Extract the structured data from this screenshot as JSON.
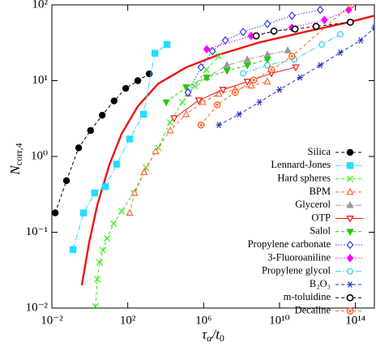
{
  "chart_data": {
    "type": "scatter",
    "log_x": true,
    "log_y": true,
    "x_label": {
      "base": "τ",
      "sub": "α",
      "mid": "/t",
      "sub2": "0"
    },
    "y_label": {
      "base": "N",
      "sub": "corr,4"
    },
    "xlim": [
      0.01,
      1000000000000000.0
    ],
    "ylim": [
      0.01,
      100
    ],
    "xticks": [
      {
        "value": 0.01,
        "label": "10⁻²"
      },
      {
        "value": 100,
        "label": "10²"
      },
      {
        "value": 1000000,
        "label": "10⁶"
      },
      {
        "value": 10000000000,
        "label": "10¹⁰"
      },
      {
        "value": 100000000000000,
        "label": "10¹⁴"
      }
    ],
    "yticks": [
      {
        "value": 0.01,
        "label": "10⁻²"
      },
      {
        "value": 0.1,
        "label": "10⁻¹"
      },
      {
        "value": 1,
        "label": "10⁰"
      },
      {
        "value": 10,
        "label": "10¹"
      },
      {
        "value": 100,
        "label": "10²"
      }
    ],
    "legend": "right",
    "series": [
      {
        "name": "Silica",
        "color": "#000000",
        "marker": "circle",
        "dash": "dashed",
        "x": [
          0.015,
          0.059,
          0.26,
          1.1,
          4.5,
          19,
          78,
          340,
          1350
        ],
        "values": [
          0.18,
          0.48,
          1.3,
          2.2,
          3.5,
          5.4,
          7.9,
          10,
          12.3
        ]
      },
      {
        "name": "Lennard-Jones",
        "color": "#22ddff",
        "marker": "square",
        "dash": "dashdot",
        "x": [
          0.13,
          0.47,
          1.8,
          6.6,
          26,
          126,
          680,
          2700,
          11700
        ],
        "values": [
          0.059,
          0.18,
          0.33,
          0.4,
          0.79,
          1.7,
          3.6,
          23,
          30
        ]
      },
      {
        "name": "Hard spheres",
        "color": "#33ee11",
        "marker": "x",
        "dash": "dashed",
        "x": [
          2.0,
          2.5,
          3.3,
          4.9,
          8.1,
          18,
          48,
          210,
          910,
          4000,
          17000,
          76000,
          330000,
          1400000,
          6300000
        ],
        "values": [
          0.0105,
          0.024,
          0.04,
          0.058,
          0.083,
          0.13,
          0.19,
          0.33,
          0.71,
          1.3,
          2.8,
          5.2,
          8.5,
          14,
          21
        ]
      },
      {
        "name": "BPM",
        "color": "#ff6633",
        "marker": "tri-open",
        "dash": "dashed",
        "x": [
          126,
          230,
          740,
          2950,
          17400,
          120000,
          890000,
          6300000,
          46000000,
          320000000,
          2300000000
        ],
        "values": [
          0.18,
          0.33,
          0.62,
          1.17,
          2.2,
          3.6,
          5.2,
          6.7,
          7.6,
          8.6,
          9.7
        ]
      },
      {
        "name": "Glycerol",
        "color": "#999999",
        "marker": "tri",
        "dash": "dashdot",
        "x": [
          150000,
          1450000,
          17000000,
          200000000,
          2300000000,
          27000000000
        ],
        "values": [
          6.7,
          11,
          16,
          19,
          22,
          25
        ]
      },
      {
        "name": "OTP",
        "color": "#ee1111",
        "marker": "tri-down-open",
        "dash": "solid",
        "x": [
          28000,
          550000,
          10500000,
          200000000,
          3800000000,
          73000000000
        ],
        "values": [
          3.2,
          5.5,
          7.6,
          9.7,
          12.5,
          15
        ]
      },
      {
        "name": "Salol",
        "color": "#22cc00",
        "marker": "tri-down",
        "dash": "dashed",
        "x": [
          10700,
          120000,
          1450000,
          17000000,
          200000000,
          2300000000
        ],
        "values": [
          5.2,
          8.2,
          11,
          13.5,
          16,
          19
        ]
      },
      {
        "name": "Propylene carbonate",
        "color": "#3333ee",
        "marker": "diamond-open",
        "dash": "dotted",
        "x": [
          150000,
          730000,
          2900000,
          14000000,
          120000000,
          2300000000,
          45000000000,
          1400000000000
        ],
        "values": [
          7.0,
          15,
          24.5,
          34,
          44,
          56,
          72,
          86
        ]
      },
      {
        "name": "3-Fluoroaniline",
        "color": "#ff00ff",
        "marker": "diamond",
        "dash": "dotted",
        "x": [
          1450000,
          320000000,
          45000000000,
          2300000000000,
          44000000000000
        ],
        "values": [
          26,
          39,
          50,
          63,
          86
        ]
      },
      {
        "name": "Propylene glycol",
        "color": "#33ccee",
        "marker": "hexagon-open",
        "dash": "dashdot",
        "x": [
          120000000,
          2300000000,
          60000000000,
          1700000000000,
          16000000000000
        ],
        "values": [
          12.5,
          16,
          19,
          30,
          41
        ]
      },
      {
        "name": "B₂O₃",
        "color": "#2233cc",
        "marker": "star",
        "dash": "dashed",
        "x": [
          6300000,
          74000000,
          870000000,
          10000000000,
          120000000000,
          1400000000000,
          16000000000000,
          190000000000000,
          1000000000000000
        ],
        "values": [
          2.6,
          3.6,
          5.2,
          7.6,
          11,
          16,
          23.5,
          34,
          50
        ]
      },
      {
        "name": "m-toluidine",
        "color": "#000000",
        "marker": "circle-open",
        "dash": "dashed",
        "x": [
          590000000,
          5100000000,
          66000000000,
          850000000000,
          54000000000000
        ],
        "values": [
          39,
          45,
          48,
          52,
          59
        ]
      },
      {
        "name": "Decaline",
        "color": "#ff6622",
        "marker": "circle-dot",
        "dash": "dashed",
        "x": [
          730000,
          5200000,
          46000000,
          440000000,
          3800000000,
          45000000000,
          59000000000000
        ],
        "values": [
          2.6,
          4.8,
          7.0,
          10.2,
          14,
          21,
          100
        ]
      }
    ],
    "fit": {
      "color": "#ee1111",
      "x": [
        0.38,
        0.93,
        2.5,
        11,
        48,
        340,
        4000,
        120000,
        6300000,
        870000000,
        320000000000,
        44000000000000,
        1000000000000000
      ],
      "values": [
        0.02,
        0.074,
        0.23,
        0.79,
        2.0,
        4.6,
        9.1,
        15,
        22,
        32,
        45,
        59,
        72
      ]
    }
  }
}
